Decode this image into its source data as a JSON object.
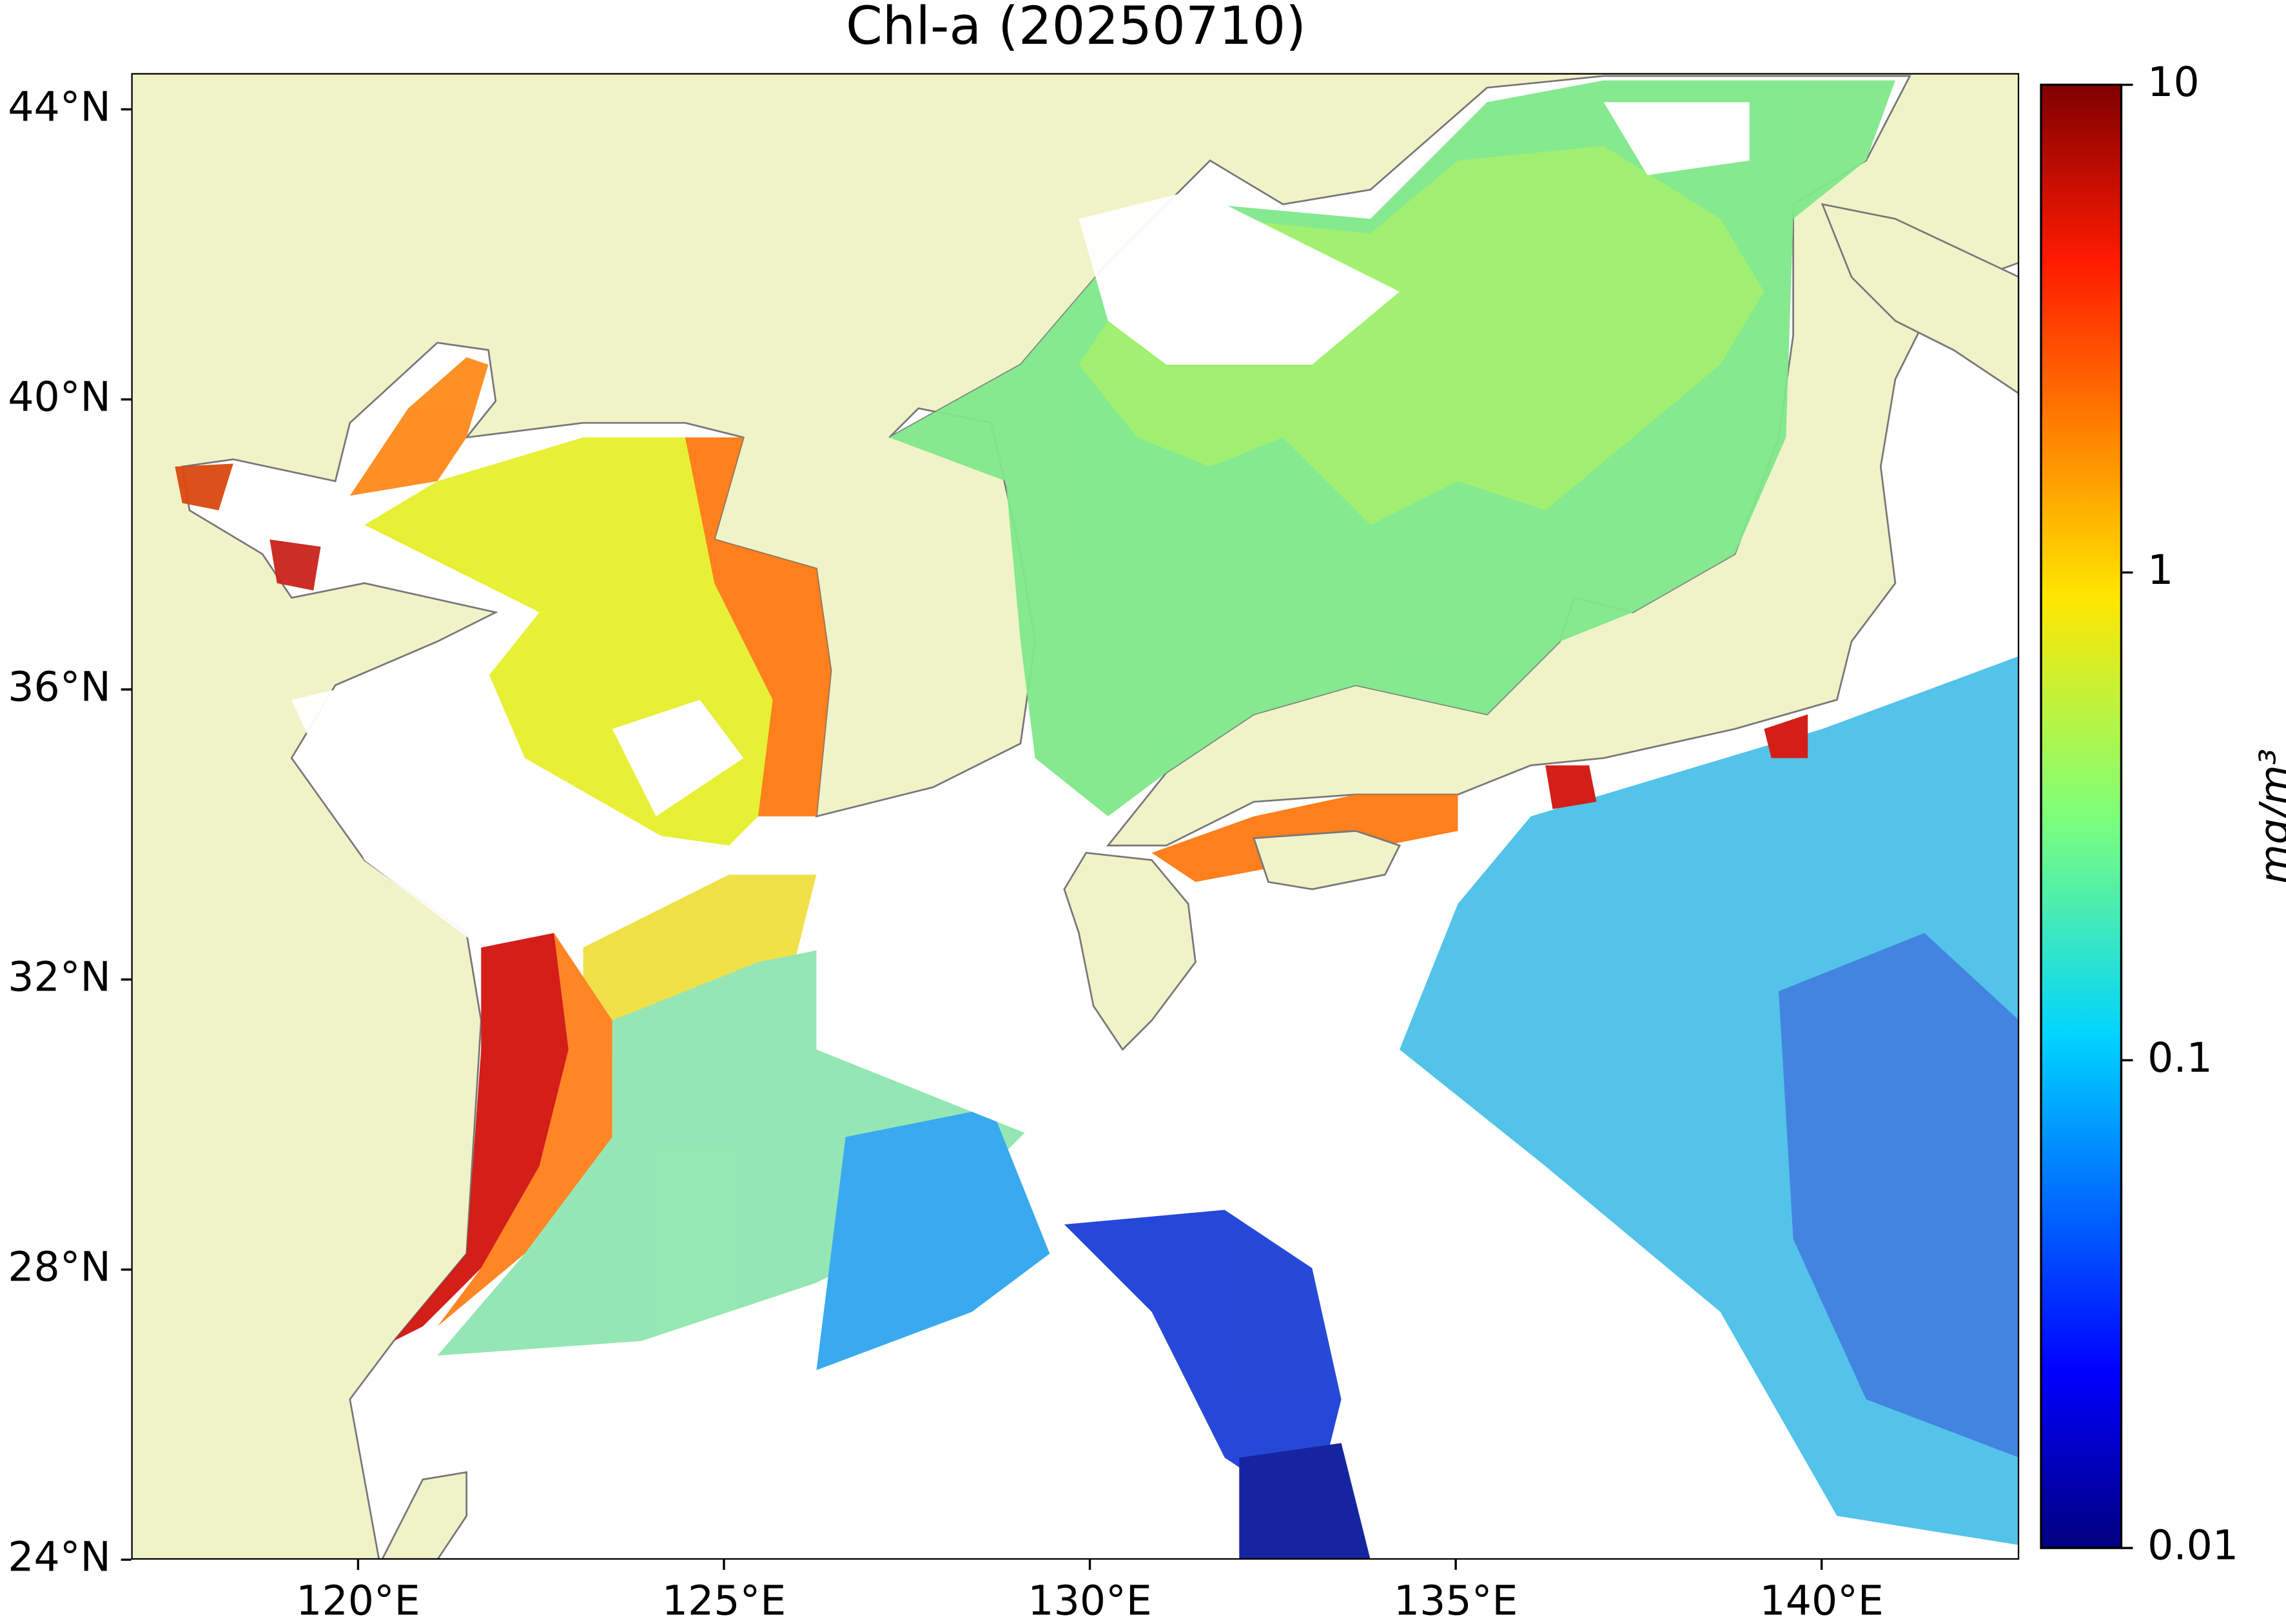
{
  "map": {
    "title": "Chl-a (20250710)",
    "xlim": [
      116.9,
      142.7
    ],
    "ylim": [
      24,
      44.5
    ],
    "lon_ticks": [
      {
        "value": 120,
        "label": "120°E"
      },
      {
        "value": 125,
        "label": "125°E"
      },
      {
        "value": 130,
        "label": "130°E"
      },
      {
        "value": 135,
        "label": "135°E"
      },
      {
        "value": 140,
        "label": "140°E"
      }
    ],
    "lat_ticks": [
      {
        "value": 24,
        "label": "24°N"
      },
      {
        "value": 28,
        "label": "28°N"
      },
      {
        "value": 32,
        "label": "32°N"
      },
      {
        "value": 36,
        "label": "36°N"
      },
      {
        "value": 40,
        "label": "40°N"
      },
      {
        "value": 44,
        "label": "44°N"
      }
    ],
    "colorbar": {
      "label": "mg/m³",
      "scale": "log",
      "range": [
        0.01,
        10
      ],
      "ticks": [
        {
          "value": 0.01,
          "label": "0.01"
        },
        {
          "value": 0.1,
          "label": "0.1"
        },
        {
          "value": 1,
          "label": "1"
        },
        {
          "value": 10,
          "label": "10"
        }
      ]
    }
  }
}
